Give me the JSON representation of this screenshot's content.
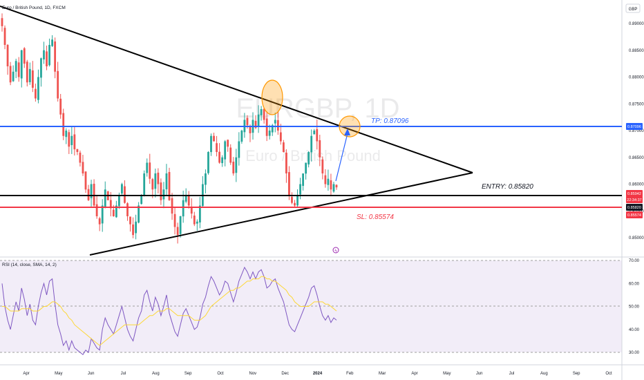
{
  "chart_data": [
    {
      "type": "candlestick",
      "title": "Euro / British Pound, 1D, FXCM",
      "watermark_symbol": "EURGBP, 1D",
      "watermark_name": "Euro / British Pound",
      "currency": "GBP",
      "price_axis": {
        "ticks": [
          "0.89000",
          "0.88500",
          "0.88000",
          "0.87500",
          "0.87000",
          "0.86500",
          "0.86000",
          "0.85500",
          "0.85000"
        ],
        "ylim": [
          0.8485,
          0.8915
        ]
      },
      "price_badges": [
        {
          "text": "0.87096",
          "color": "#2962ff"
        },
        {
          "text": "0.85942",
          "color": "#f23645"
        },
        {
          "text": "22:34:37",
          "color": "#f23645"
        },
        {
          "text": "0.85820",
          "color": "#131722"
        },
        {
          "text": "0.85574",
          "color": "#f23645"
        }
      ],
      "levels": [
        {
          "label": "TP: 0.87096",
          "price": 0.87096,
          "color": "#2962ff"
        },
        {
          "label": "ENTRY: 0.85820",
          "price": 0.8582,
          "color": "#131722"
        },
        {
          "label": "SL: 0.85574",
          "price": 0.85574,
          "color": "#f23645"
        }
      ],
      "x_axis_labels": [
        "Apr",
        "May",
        "Jun",
        "Jul",
        "Aug",
        "Sep",
        "Oct",
        "Nov",
        "Dec",
        "2024",
        "Feb",
        "Mar",
        "Apr",
        "May",
        "Jun",
        "Jul",
        "Aug",
        "Sep",
        "Oct"
      ],
      "closes": [
        0.8895,
        0.886,
        0.882,
        0.879,
        0.881,
        0.883,
        0.88,
        0.885,
        0.8825,
        0.879,
        0.8815,
        0.878,
        0.876,
        0.88,
        0.8835,
        0.885,
        0.882,
        0.886,
        0.887,
        0.881,
        0.876,
        0.873,
        0.869,
        0.87,
        0.867,
        0.869,
        0.8665,
        0.866,
        0.864,
        0.862,
        0.859,
        0.857,
        0.86,
        0.856,
        0.854,
        0.8525,
        0.856,
        0.859,
        0.857,
        0.8555,
        0.854,
        0.856,
        0.858,
        0.86,
        0.8565,
        0.854,
        0.8525,
        0.8505,
        0.853,
        0.856,
        0.858,
        0.862,
        0.864,
        0.861,
        0.859,
        0.862,
        0.86,
        0.857,
        0.859,
        0.862,
        0.857,
        0.8545,
        0.852,
        0.8505,
        0.854,
        0.857,
        0.858,
        0.856,
        0.8545,
        0.8525,
        0.853,
        0.856,
        0.86,
        0.862,
        0.866,
        0.869,
        0.868,
        0.866,
        0.864,
        0.865,
        0.868,
        0.867,
        0.864,
        0.862,
        0.865,
        0.868,
        0.87,
        0.872,
        0.871,
        0.8695,
        0.872,
        0.8705,
        0.873,
        0.874,
        0.872,
        0.869,
        0.87,
        0.871,
        0.872,
        0.87,
        0.868,
        0.866,
        0.862,
        0.858,
        0.8565,
        0.856,
        0.858,
        0.86,
        0.862,
        0.864,
        0.866,
        0.869,
        0.87,
        0.868,
        0.865,
        0.862,
        0.86,
        0.861,
        0.859,
        0.86,
        0.8594
      ],
      "rsi": {
        "label": "RSI (14, close, SMA, 14, 2)",
        "ticks": [
          "70.00",
          "60.00",
          "50.00",
          "40.00",
          "30.00"
        ],
        "ylim": [
          28,
          72
        ],
        "values": [
          60,
          50,
          44,
          40,
          46,
          52,
          48,
          58,
          53,
          46,
          51,
          44,
          42,
          50,
          56,
          60,
          55,
          61,
          62,
          51,
          42,
          38,
          33,
          35,
          31,
          35,
          32,
          31,
          30,
          29,
          31,
          30,
          36,
          34,
          32,
          31,
          40,
          45,
          42,
          40,
          38,
          42,
          46,
          50,
          45,
          40,
          37,
          35,
          40,
          45,
          48,
          55,
          57,
          52,
          48,
          54,
          51,
          46,
          50,
          55,
          47,
          43,
          39,
          37,
          42,
          47,
          49,
          46,
          43,
          40,
          41,
          45,
          51,
          54,
          59,
          63,
          61,
          58,
          55,
          57,
          61,
          60,
          56,
          52,
          56,
          61,
          64,
          67,
          65,
          62,
          65,
          62,
          65,
          66,
          63,
          58,
          59,
          61,
          62,
          58,
          55,
          52,
          47,
          42,
          40,
          39,
          42,
          45,
          48,
          51,
          54,
          58,
          59,
          55,
          50,
          46,
          44,
          46,
          43,
          45,
          44
        ],
        "ma": [
          50,
          50,
          49,
          48,
          48,
          48,
          48,
          49,
          49,
          49,
          49,
          48,
          48,
          48,
          49,
          50,
          50,
          51,
          52,
          52,
          51,
          50,
          48,
          47,
          45,
          44,
          42,
          41,
          40,
          39,
          38,
          37,
          36,
          35,
          34,
          33,
          34,
          35,
          36,
          37,
          38,
          39,
          40,
          41,
          42,
          42,
          42,
          42,
          42,
          42,
          43,
          44,
          45,
          46,
          46,
          47,
          48,
          48,
          48,
          49,
          49,
          48,
          47,
          46,
          46,
          46,
          46,
          46,
          45,
          44,
          44,
          44,
          45,
          46,
          48,
          50,
          51,
          52,
          53,
          54,
          55,
          56,
          57,
          57,
          58,
          58,
          59,
          60,
          61,
          61,
          62,
          62,
          62,
          63,
          63,
          62,
          62,
          61,
          61,
          60,
          59,
          58,
          57,
          55,
          54,
          52,
          51,
          50,
          50,
          50,
          50,
          51,
          52,
          52,
          52,
          52,
          51,
          51,
          50,
          49,
          48
        ]
      }
    }
  ]
}
